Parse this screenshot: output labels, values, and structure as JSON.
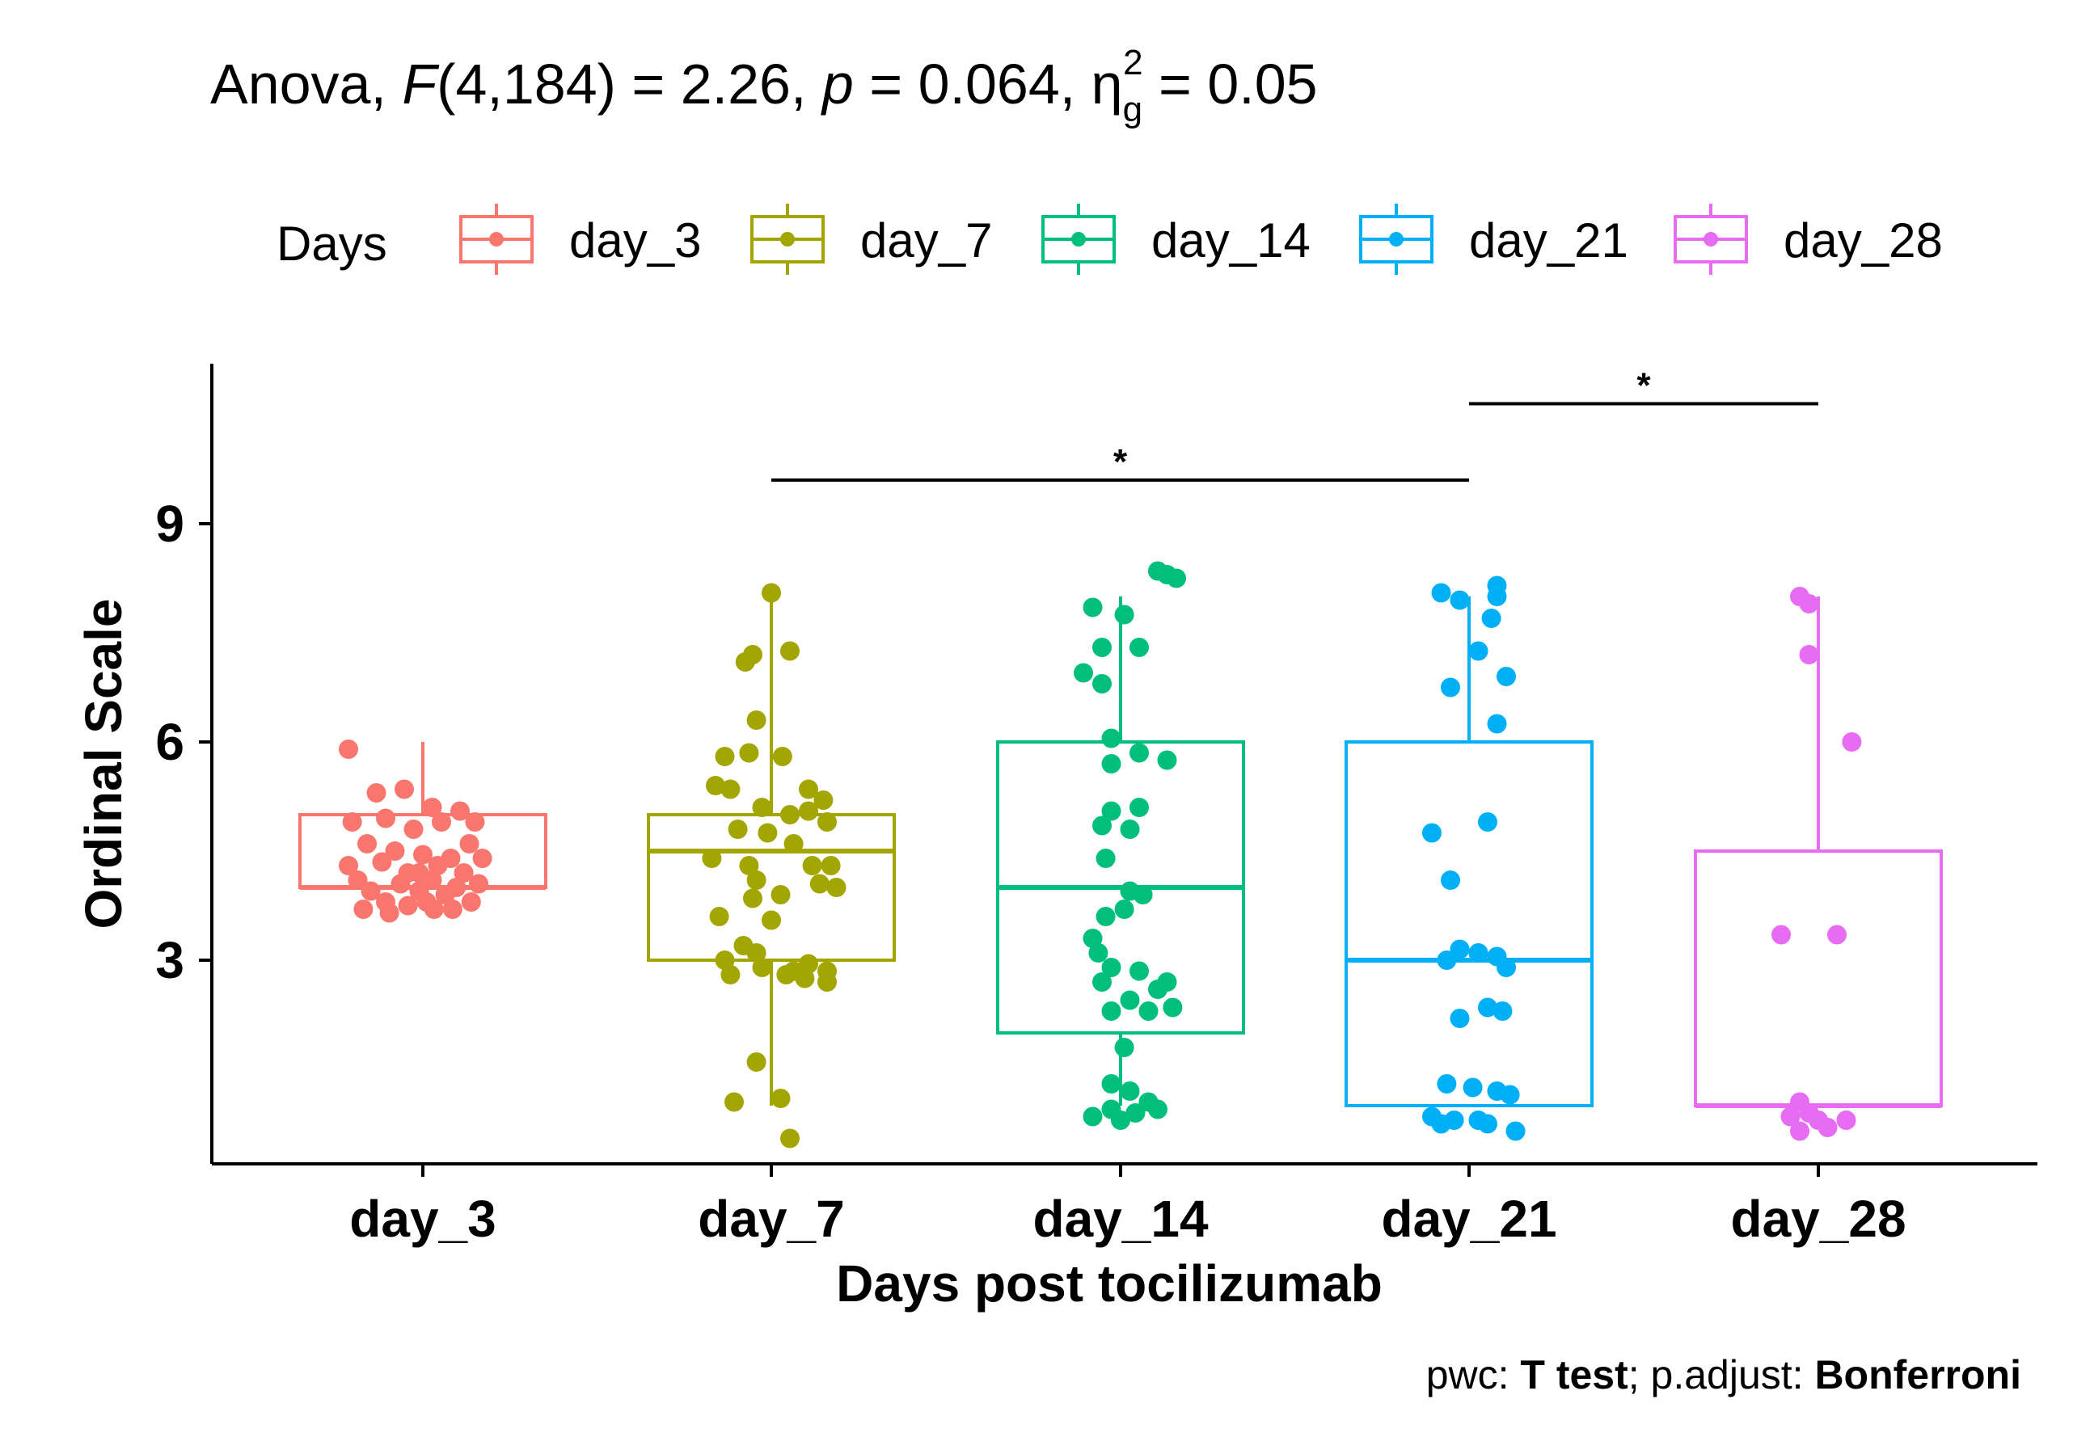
{
  "chart_data": {
    "type": "boxplot",
    "title": {
      "prefix": "Anova, ",
      "stat_symbol": "F",
      "stat_args": "(4,184) = 2.26, ",
      "p_symbol": "p",
      "p_value": " = 0.064, ",
      "eta_symbol": "η",
      "eta_sub": "g",
      "eta_sup": "2",
      "eta_value": " = 0.05"
    },
    "legend": {
      "title": "Days",
      "position": "top",
      "items": [
        "day_3",
        "day_7",
        "day_14",
        "day_21",
        "day_28"
      ]
    },
    "xlabel": "Days post tocilizumab",
    "ylabel": "Ordinal Scale",
    "categories": [
      "day_3",
      "day_7",
      "day_14",
      "day_21",
      "day_28"
    ],
    "yticks": [
      "3",
      "6",
      "9"
    ],
    "ytick_values": [
      3,
      6,
      9
    ],
    "ylim": [
      0.2,
      11.2
    ],
    "colors": [
      "#F8766D",
      "#A3A500",
      "#00BF7D",
      "#00B0F6",
      "#E76BF3"
    ],
    "boxes": [
      {
        "name": "day_3",
        "min": 4,
        "q1": 4,
        "median": 4,
        "q3": 5,
        "max": 6
      },
      {
        "name": "day_7",
        "min": 1,
        "q1": 3,
        "median": 4.5,
        "q3": 5,
        "max": 8
      },
      {
        "name": "day_14",
        "min": 1,
        "q1": 2,
        "median": 4,
        "q3": 6,
        "max": 8
      },
      {
        "name": "day_21",
        "min": 1,
        "q1": 1,
        "median": 3,
        "q3": 6,
        "max": 8
      },
      {
        "name": "day_28",
        "min": 1,
        "q1": 1,
        "median": 1,
        "q3": 4.5,
        "max": 8
      }
    ],
    "points": [
      [
        [
          -0.4,
          5.9
        ],
        [
          -0.25,
          5.3
        ],
        [
          -0.1,
          5.35
        ],
        [
          0.05,
          5.1
        ],
        [
          0.2,
          5.05
        ],
        [
          0.28,
          4.9
        ],
        [
          -0.38,
          4.9
        ],
        [
          -0.2,
          4.95
        ],
        [
          -0.05,
          4.8
        ],
        [
          0.1,
          4.9
        ],
        [
          0.25,
          4.6
        ],
        [
          -0.3,
          4.6
        ],
        [
          -0.15,
          4.5
        ],
        [
          0,
          4.45
        ],
        [
          0.15,
          4.4
        ],
        [
          0.32,
          4.4
        ],
        [
          -0.4,
          4.3
        ],
        [
          -0.22,
          4.35
        ],
        [
          -0.08,
          4.2
        ],
        [
          0.08,
          4.3
        ],
        [
          0.22,
          4.2
        ],
        [
          -0.35,
          4.1
        ],
        [
          -0.12,
          4.05
        ],
        [
          0.05,
          4.1
        ],
        [
          0.18,
          4.0
        ],
        [
          0.3,
          4.05
        ],
        [
          -0.28,
          3.95
        ],
        [
          -0.02,
          3.95
        ],
        [
          0.12,
          3.9
        ],
        [
          -0.2,
          3.8
        ],
        [
          0.02,
          3.8
        ],
        [
          0.26,
          3.8
        ],
        [
          -0.32,
          3.7
        ],
        [
          -0.08,
          3.75
        ],
        [
          0.16,
          3.7
        ],
        [
          -0.18,
          3.65
        ],
        [
          0.06,
          3.7
        ],
        [
          -0.02,
          4.2
        ]
      ],
      [
        [
          0.0,
          8.05
        ],
        [
          -0.14,
          7.1
        ],
        [
          -0.1,
          7.2
        ],
        [
          0.1,
          7.25
        ],
        [
          -0.08,
          6.3
        ],
        [
          -0.25,
          5.8
        ],
        [
          -0.12,
          5.85
        ],
        [
          0.06,
          5.8
        ],
        [
          -0.3,
          5.4
        ],
        [
          -0.22,
          5.35
        ],
        [
          0.2,
          5.35
        ],
        [
          0.28,
          5.2
        ],
        [
          -0.05,
          5.1
        ],
        [
          0.1,
          5.0
        ],
        [
          0.2,
          5.05
        ],
        [
          0.3,
          4.9
        ],
        [
          -0.18,
          4.8
        ],
        [
          -0.02,
          4.75
        ],
        [
          0.12,
          4.6
        ],
        [
          -0.32,
          4.4
        ],
        [
          -0.12,
          4.3
        ],
        [
          0.22,
          4.3
        ],
        [
          0.32,
          4.3
        ],
        [
          -0.08,
          4.1
        ],
        [
          0.26,
          4.05
        ],
        [
          0.35,
          4.0
        ],
        [
          -0.1,
          3.85
        ],
        [
          0.05,
          3.9
        ],
        [
          -0.28,
          3.6
        ],
        [
          0.0,
          3.55
        ],
        [
          -0.15,
          3.2
        ],
        [
          -0.08,
          3.1
        ],
        [
          -0.25,
          3.0
        ],
        [
          0.2,
          2.95
        ],
        [
          -0.05,
          2.9
        ],
        [
          0.12,
          2.85
        ],
        [
          0.3,
          2.85
        ],
        [
          -0.22,
          2.8
        ],
        [
          0.08,
          2.8
        ],
        [
          0.18,
          2.75
        ],
        [
          0.3,
          2.7
        ],
        [
          -0.08,
          1.6
        ],
        [
          0.05,
          1.1
        ],
        [
          -0.2,
          1.05
        ],
        [
          0.1,
          0.55
        ]
      ],
      [
        [
          0.2,
          8.35
        ],
        [
          0.25,
          8.3
        ],
        [
          0.3,
          8.25
        ],
        [
          -0.15,
          7.85
        ],
        [
          0.02,
          7.75
        ],
        [
          -0.1,
          7.3
        ],
        [
          0.1,
          7.3
        ],
        [
          -0.2,
          6.95
        ],
        [
          -0.1,
          6.8
        ],
        [
          -0.05,
          6.05
        ],
        [
          0.1,
          5.85
        ],
        [
          0.25,
          5.75
        ],
        [
          -0.05,
          5.7
        ],
        [
          0.1,
          5.1
        ],
        [
          -0.05,
          5.05
        ],
        [
          -0.1,
          4.85
        ],
        [
          0.05,
          4.8
        ],
        [
          -0.08,
          4.4
        ],
        [
          0.05,
          3.95
        ],
        [
          0.12,
          3.9
        ],
        [
          0.02,
          3.7
        ],
        [
          -0.08,
          3.6
        ],
        [
          -0.15,
          3.3
        ],
        [
          0.25,
          2.7
        ],
        [
          -0.12,
          3.1
        ],
        [
          -0.05,
          2.9
        ],
        [
          0.1,
          2.85
        ],
        [
          0.2,
          2.6
        ],
        [
          -0.1,
          2.7
        ],
        [
          0.05,
          2.45
        ],
        [
          -0.05,
          2.3
        ],
        [
          0.15,
          2.3
        ],
        [
          0.28,
          2.35
        ],
        [
          0.02,
          1.8
        ],
        [
          -0.05,
          1.3
        ],
        [
          0.05,
          1.2
        ],
        [
          0.15,
          1.05
        ],
        [
          -0.05,
          0.95
        ],
        [
          0.08,
          0.9
        ],
        [
          0.2,
          0.95
        ],
        [
          -0.15,
          0.85
        ],
        [
          0.0,
          0.8
        ]
      ],
      [
        [
          -0.15,
          8.05
        ],
        [
          -0.05,
          7.95
        ],
        [
          0.15,
          8.15
        ],
        [
          0.15,
          8.0
        ],
        [
          0.12,
          7.7
        ],
        [
          0.05,
          7.25
        ],
        [
          0.2,
          6.9
        ],
        [
          -0.1,
          6.75
        ],
        [
          0.15,
          6.25
        ],
        [
          0.1,
          4.9
        ],
        [
          -0.2,
          4.75
        ],
        [
          -0.1,
          4.1
        ],
        [
          -0.05,
          3.15
        ],
        [
          0.05,
          3.1
        ],
        [
          0.15,
          3.05
        ],
        [
          0.2,
          2.9
        ],
        [
          -0.12,
          3.0
        ],
        [
          0.1,
          2.35
        ],
        [
          0.18,
          2.3
        ],
        [
          -0.05,
          2.2
        ],
        [
          -0.12,
          1.3
        ],
        [
          0.02,
          1.25
        ],
        [
          0.15,
          1.2
        ],
        [
          0.22,
          1.15
        ],
        [
          -0.2,
          0.85
        ],
        [
          -0.08,
          0.8
        ],
        [
          0.05,
          0.8
        ],
        [
          0.1,
          0.75
        ],
        [
          -0.15,
          0.75
        ],
        [
          0.25,
          0.65
        ]
      ],
      [
        [
          -0.1,
          8.0
        ],
        [
          -0.05,
          7.9
        ],
        [
          -0.05,
          7.2
        ],
        [
          0.18,
          6.0
        ],
        [
          -0.2,
          3.35
        ],
        [
          0.1,
          3.35
        ],
        [
          -0.1,
          1.05
        ],
        [
          -0.05,
          0.9
        ],
        [
          -0.15,
          0.85
        ],
        [
          0.0,
          0.8
        ],
        [
          0.15,
          0.8
        ],
        [
          0.05,
          0.7
        ],
        [
          -0.1,
          0.65
        ]
      ]
    ],
    "significance": [
      {
        "from": "day_7",
        "to": "day_21",
        "label": "*",
        "y": 9.6
      },
      {
        "from": "day_21",
        "to": "day_28",
        "label": "*",
        "y": 10.65
      }
    ],
    "footnote": {
      "pwc_label": "pwc: ",
      "pwc_method": "T test",
      "sep": "; p.adjust: ",
      "adjust_method": "Bonferroni"
    }
  }
}
